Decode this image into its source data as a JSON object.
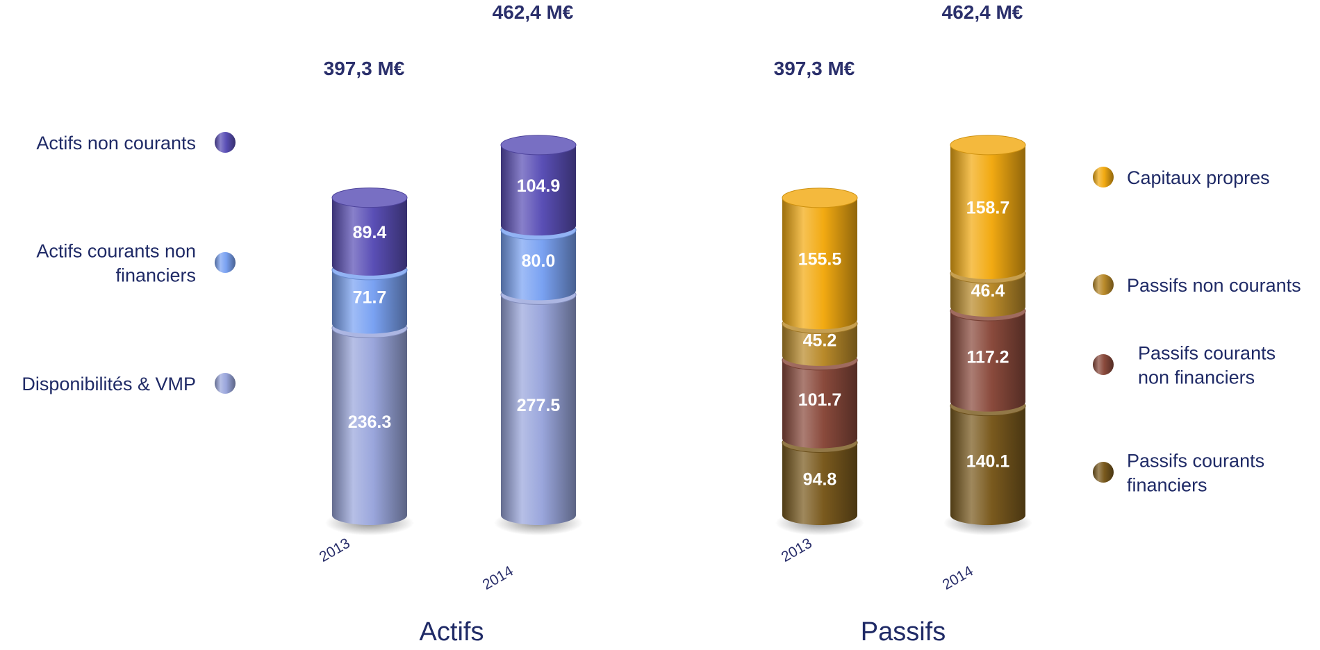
{
  "chart_data": [
    {
      "type": "bar",
      "title": "Actifs",
      "categories": [
        "2013",
        "2014"
      ],
      "totals": [
        "397,3 M€",
        "462,4 M€"
      ],
      "series": [
        {
          "name": "Disponibilités & VMP",
          "values": [
            236.3,
            277.5
          ],
          "labels": [
            "236.3",
            "277.5"
          ],
          "color": "#9aa6dc"
        },
        {
          "name": "Actifs courants non financiers",
          "values": [
            71.7,
            80.0
          ],
          "labels": [
            "71.7",
            "80.0"
          ],
          "color": "#7aa2f2"
        },
        {
          "name": "Actifs non courants",
          "values": [
            89.4,
            104.9
          ],
          "labels": [
            "89.4",
            "104.9"
          ],
          "color": "#5a4fb6"
        }
      ],
      "legend_position": "left",
      "legend_order": [
        2,
        1,
        0
      ],
      "legend_lines": [
        [
          "Actifs non courants"
        ],
        [
          "Actifs courants non",
          "financiers"
        ],
        [
          "Disponibilités & VMP"
        ]
      ]
    },
    {
      "type": "bar",
      "title": "Passifs",
      "categories": [
        "2013",
        "2014"
      ],
      "totals": [
        "397,3 M€",
        "462,4 M€"
      ],
      "series": [
        {
          "name": "Passifs courants financiers",
          "values": [
            94.8,
            140.1
          ],
          "labels": [
            "94.8",
            "140.1"
          ],
          "color": "#7a5a1e"
        },
        {
          "name": "Passifs courants non financiers",
          "values": [
            101.7,
            117.2
          ],
          "labels": [
            "101.7",
            "117.2"
          ],
          "color": "#8a4a3c"
        },
        {
          "name": "Passifs non courants",
          "values": [
            45.2,
            46.4
          ],
          "labels": [
            "45.2",
            "46.4"
          ],
          "color": "#b98a2a"
        },
        {
          "name": "Capitaux propres",
          "values": [
            155.5,
            158.7
          ],
          "labels": [
            "155.5",
            "158.7"
          ],
          "color": "#f2aa12"
        }
      ],
      "legend_position": "right",
      "legend_order": [
        3,
        2,
        1,
        0
      ],
      "legend_lines": [
        [
          "Capitaux propres"
        ],
        [
          "Passifs non courants"
        ],
        [
          "Passifs courants",
          "non financiers"
        ],
        [
          "Passifs courants",
          "financiers"
        ]
      ]
    }
  ]
}
